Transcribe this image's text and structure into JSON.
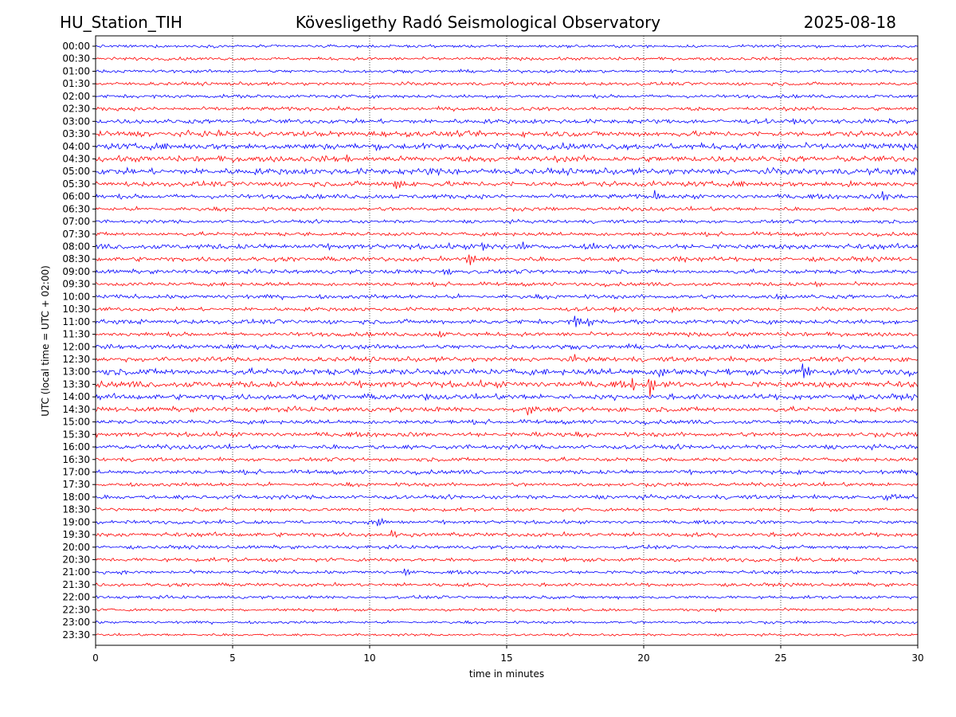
{
  "header": {
    "station": "HU_Station_TIH",
    "observatory": "Kövesligethy Radó Seismological Observatory",
    "date": "2025-08-18"
  },
  "chart_data": {
    "type": "line",
    "title": "Kövesligethy Radó Seismological Observatory",
    "xlabel": "time in minutes",
    "ylabel": "UTC (local time = UTC + 02:00)",
    "xlim": [
      0,
      30
    ],
    "x_ticks": [
      0,
      5,
      10,
      15,
      20,
      25,
      30
    ],
    "x_tick_labels": [
      "0",
      "5",
      "10",
      "15",
      "20",
      "25",
      "30"
    ],
    "grid": "vertical dotted at each x tick",
    "colors": {
      "even_rows": "#0000ff",
      "odd_rows": "#ff0000"
    },
    "rows": [
      {
        "label": "00:00",
        "color": "#0000ff",
        "noise": 0.8,
        "events": []
      },
      {
        "label": "00:30",
        "color": "#ff0000",
        "noise": 0.9,
        "events": []
      },
      {
        "label": "01:00",
        "color": "#0000ff",
        "noise": 0.9,
        "events": []
      },
      {
        "label": "01:30",
        "color": "#ff0000",
        "noise": 1.0,
        "events": []
      },
      {
        "label": "02:00",
        "color": "#0000ff",
        "noise": 1.0,
        "events": []
      },
      {
        "label": "02:30",
        "color": "#ff0000",
        "noise": 1.1,
        "events": []
      },
      {
        "label": "03:00",
        "color": "#0000ff",
        "noise": 1.3,
        "events": []
      },
      {
        "label": "03:30",
        "color": "#ff0000",
        "noise": 1.6,
        "events": []
      },
      {
        "label": "04:00",
        "color": "#0000ff",
        "noise": 1.8,
        "events": []
      },
      {
        "label": "04:30",
        "color": "#ff0000",
        "noise": 1.7,
        "events": [
          {
            "t": 9.2,
            "amp": 5
          }
        ]
      },
      {
        "label": "05:00",
        "color": "#0000ff",
        "noise": 1.8,
        "events": [
          {
            "t": 12.2,
            "amp": 5
          }
        ]
      },
      {
        "label": "05:30",
        "color": "#ff0000",
        "noise": 1.5,
        "events": [
          {
            "t": 10.9,
            "amp": 8
          },
          {
            "t": 27.5,
            "amp": 6
          }
        ]
      },
      {
        "label": "06:00",
        "color": "#0000ff",
        "noise": 1.3,
        "events": [
          {
            "t": 20.4,
            "amp": 8
          },
          {
            "t": 28.7,
            "amp": 10
          }
        ]
      },
      {
        "label": "06:30",
        "color": "#ff0000",
        "noise": 1.1,
        "events": []
      },
      {
        "label": "07:00",
        "color": "#0000ff",
        "noise": 1.0,
        "events": []
      },
      {
        "label": "07:30",
        "color": "#ff0000",
        "noise": 1.1,
        "events": []
      },
      {
        "label": "08:00",
        "color": "#0000ff",
        "noise": 1.5,
        "events": [
          {
            "t": 14.1,
            "amp": 9
          },
          {
            "t": 15.6,
            "amp": 6
          },
          {
            "t": 18.1,
            "amp": 5
          }
        ]
      },
      {
        "label": "08:30",
        "color": "#ff0000",
        "noise": 1.3,
        "events": [
          {
            "t": 13.6,
            "amp": 13
          },
          {
            "t": 21.3,
            "amp": 5
          }
        ]
      },
      {
        "label": "09:00",
        "color": "#0000ff",
        "noise": 1.2,
        "events": [
          {
            "t": 12.7,
            "amp": 8
          }
        ]
      },
      {
        "label": "09:30",
        "color": "#ff0000",
        "noise": 1.1,
        "events": [
          {
            "t": 26.3,
            "amp": 4
          }
        ]
      },
      {
        "label": "10:00",
        "color": "#0000ff",
        "noise": 1.2,
        "events": [
          {
            "t": 24.9,
            "amp": 5
          }
        ]
      },
      {
        "label": "10:30",
        "color": "#ff0000",
        "noise": 1.1,
        "events": [
          {
            "t": 21.0,
            "amp": 5
          }
        ]
      },
      {
        "label": "11:00",
        "color": "#0000ff",
        "noise": 1.3,
        "events": [
          {
            "t": 17.5,
            "amp": 12
          },
          {
            "t": 18.0,
            "amp": 6
          }
        ]
      },
      {
        "label": "11:30",
        "color": "#ff0000",
        "noise": 1.2,
        "events": [
          {
            "t": 12.5,
            "amp": 5
          }
        ]
      },
      {
        "label": "12:00",
        "color": "#0000ff",
        "noise": 1.3,
        "events": []
      },
      {
        "label": "12:30",
        "color": "#ff0000",
        "noise": 1.4,
        "events": [
          {
            "t": 17.4,
            "amp": 7
          }
        ]
      },
      {
        "label": "13:00",
        "color": "#0000ff",
        "noise": 1.8,
        "events": [
          {
            "t": 20.6,
            "amp": 7
          },
          {
            "t": 25.8,
            "amp": 10
          }
        ]
      },
      {
        "label": "13:30",
        "color": "#ff0000",
        "noise": 1.8,
        "events": [
          {
            "t": 20.2,
            "amp": 14
          },
          {
            "t": 19.6,
            "amp": 6
          }
        ]
      },
      {
        "label": "14:00",
        "color": "#0000ff",
        "noise": 1.6,
        "events": [
          {
            "t": 12.1,
            "amp": 7
          },
          {
            "t": 17.6,
            "amp": 5
          }
        ]
      },
      {
        "label": "14:30",
        "color": "#ff0000",
        "noise": 1.4,
        "events": [
          {
            "t": 15.8,
            "amp": 9
          }
        ]
      },
      {
        "label": "15:00",
        "color": "#0000ff",
        "noise": 1.2,
        "events": []
      },
      {
        "label": "15:30",
        "color": "#ff0000",
        "noise": 1.3,
        "events": [
          {
            "t": 16.0,
            "amp": 4
          }
        ]
      },
      {
        "label": "16:00",
        "color": "#0000ff",
        "noise": 1.3,
        "events": []
      },
      {
        "label": "16:30",
        "color": "#ff0000",
        "noise": 1.1,
        "events": []
      },
      {
        "label": "17:00",
        "color": "#0000ff",
        "noise": 1.2,
        "events": [
          {
            "t": 25.6,
            "amp": 6
          }
        ]
      },
      {
        "label": "17:30",
        "color": "#ff0000",
        "noise": 1.1,
        "events": []
      },
      {
        "label": "18:00",
        "color": "#0000ff",
        "noise": 1.2,
        "events": [
          {
            "t": 28.8,
            "amp": 5
          }
        ]
      },
      {
        "label": "18:30",
        "color": "#ff0000",
        "noise": 1.0,
        "events": []
      },
      {
        "label": "19:00",
        "color": "#0000ff",
        "noise": 1.0,
        "events": [
          {
            "t": 10.3,
            "amp": 8
          }
        ]
      },
      {
        "label": "19:30",
        "color": "#ff0000",
        "noise": 1.2,
        "events": [
          {
            "t": 10.8,
            "amp": 6
          },
          {
            "t": 12.2,
            "amp": 4
          }
        ]
      },
      {
        "label": "20:00",
        "color": "#0000ff",
        "noise": 1.0,
        "events": []
      },
      {
        "label": "20:30",
        "color": "#ff0000",
        "noise": 1.1,
        "events": []
      },
      {
        "label": "21:00",
        "color": "#0000ff",
        "noise": 1.0,
        "events": [
          {
            "t": 11.3,
            "amp": 6
          }
        ]
      },
      {
        "label": "21:30",
        "color": "#ff0000",
        "noise": 1.0,
        "events": []
      },
      {
        "label": "22:00",
        "color": "#0000ff",
        "noise": 0.9,
        "events": []
      },
      {
        "label": "22:30",
        "color": "#ff0000",
        "noise": 0.8,
        "events": []
      },
      {
        "label": "23:00",
        "color": "#0000ff",
        "noise": 0.8,
        "events": []
      },
      {
        "label": "23:30",
        "color": "#ff0000",
        "noise": 0.7,
        "events": []
      }
    ]
  }
}
